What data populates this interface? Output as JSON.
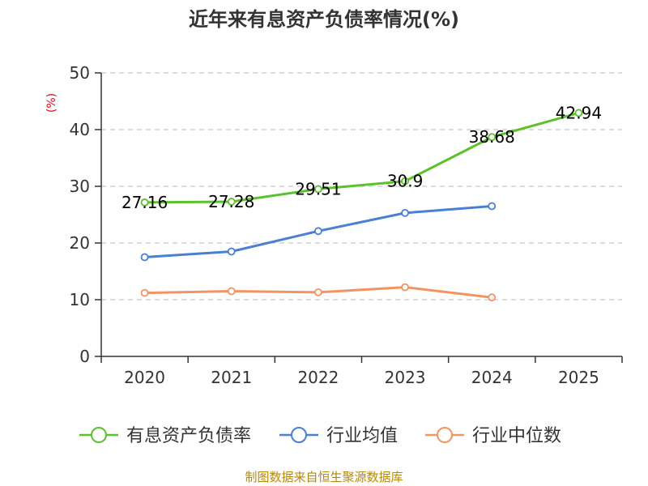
{
  "chart_data": {
    "type": "line",
    "title": "近年来有息资产负债率情况(%)",
    "ylabel": "(%)",
    "xlabel": "",
    "categories": [
      "2020",
      "2021",
      "2022",
      "2023",
      "2024",
      "2025"
    ],
    "yticks": [
      "0",
      "10",
      "20",
      "30",
      "40",
      "50"
    ],
    "ylim": [
      0,
      50
    ],
    "grid": true,
    "legend_position": "bottom",
    "series": [
      {
        "name": "有息资产负债率",
        "color": "#5cc22c",
        "values": [
          27.16,
          27.28,
          29.51,
          30.9,
          38.68,
          42.94
        ],
        "labels": [
          "27.16",
          "27.28",
          "29.51",
          "30.9",
          "38.68",
          "42.94"
        ]
      },
      {
        "name": "行业均值",
        "color": "#4a7fd6",
        "values": [
          17.5,
          18.5,
          22.1,
          25.3,
          26.5,
          null
        ]
      },
      {
        "name": "行业中位数",
        "color": "#f39362",
        "values": [
          11.2,
          11.5,
          11.3,
          12.2,
          10.4,
          null
        ]
      }
    ]
  },
  "footer": {
    "source": "制图数据来自恒生聚源数据库"
  }
}
